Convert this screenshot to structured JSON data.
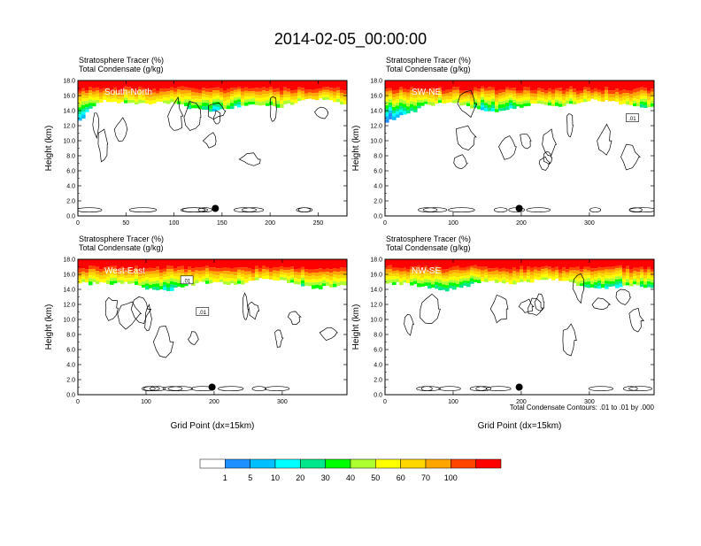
{
  "title": "2014-02-05_00:00:00",
  "chart_data": {
    "type": "heatmap",
    "panels": [
      {
        "label": "South-North",
        "var_line1": "Stratosphere Tracer   (%)",
        "var_line2": "Total Condensate   (g/kg)",
        "ylabel": "Height (km)",
        "xlabel": "",
        "xlim": [
          0,
          280
        ],
        "ylim": [
          0,
          18
        ],
        "xticks": [
          0,
          50,
          100,
          150,
          200,
          250
        ],
        "yticks": [
          "0.0",
          "2.0",
          "4.0",
          "6.0",
          "8.0",
          "10.0",
          "12.0",
          "14.0",
          "16.0",
          "18.0"
        ],
        "marker": {
          "x": 143,
          "y": 1.0
        },
        "contour_labels": []
      },
      {
        "label": "SW-NE",
        "var_line1": "Stratosphere Tracer   (%)",
        "var_line2": "Total Condensate   (g/kg)",
        "ylabel": "Height (km)",
        "xlabel": "",
        "xlim": [
          0,
          395
        ],
        "ylim": [
          0,
          18
        ],
        "xticks": [
          0,
          100,
          200,
          300
        ],
        "yticks": [
          "0.0",
          "2.0",
          "4.0",
          "6.0",
          "8.0",
          "10.0",
          "12.0",
          "14.0",
          "16.0",
          "18.0"
        ],
        "marker": {
          "x": 197,
          "y": 1.0
        },
        "contour_labels": [
          {
            "text": ".01",
            "x": 363,
            "y": 13.0
          }
        ]
      },
      {
        "label": "West-East",
        "var_line1": "Stratosphere Tracer   (%)",
        "var_line2": "Total Condensate   (g/kg)",
        "ylabel": "Height (km)",
        "xlabel": "Grid Point (dx=15km)",
        "xlim": [
          0,
          395
        ],
        "ylim": [
          0,
          18
        ],
        "xticks": [
          0,
          100,
          200,
          300
        ],
        "yticks": [
          "0.0",
          "2.0",
          "4.0",
          "6.0",
          "8.0",
          "10.0",
          "12.0",
          "14.0",
          "16.0",
          "18.0"
        ],
        "marker": {
          "x": 197,
          "y": 1.0
        },
        "contour_labels": [
          {
            "text": ".01",
            "x": 160,
            "y": 15.2
          },
          {
            "text": ".01",
            "x": 183,
            "y": 11.0
          }
        ]
      },
      {
        "label": "NW-SE",
        "var_line1": "Stratosphere Tracer   (%)",
        "var_line2": "Total Condensate   (g/kg)",
        "ylabel": "Height (km)",
        "xlabel": "Grid Point (dx=15km)",
        "xlim": [
          0,
          395
        ],
        "ylim": [
          0,
          18
        ],
        "xticks": [
          0,
          100,
          200,
          300
        ],
        "yticks": [
          "0.0",
          "2.0",
          "4.0",
          "6.0",
          "8.0",
          "10.0",
          "12.0",
          "14.0",
          "16.0",
          "18.0"
        ],
        "marker": {
          "x": 197,
          "y": 1.0
        },
        "contour_labels": []
      }
    ],
    "contour_info": "Total Condensate Contours: .01 to .01 by .000",
    "colorbar": {
      "labels": [
        "1",
        "5",
        "10",
        "20",
        "30",
        "40",
        "50",
        "60",
        "70",
        "100"
      ],
      "colors": [
        "#ffffff",
        "#1e90ff",
        "#00bfff",
        "#00ffff",
        "#00e68a",
        "#00ff00",
        "#adff2f",
        "#ffff00",
        "#ffd700",
        "#ffa500",
        "#ff4500",
        "#ff0000"
      ]
    }
  }
}
